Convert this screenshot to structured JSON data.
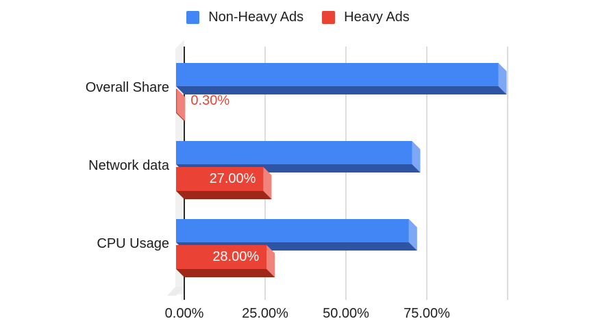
{
  "chart": {
    "background": "#ffffff",
    "legend": {
      "position": "top"
    },
    "chart_data": {
      "type": "bar",
      "orientation": "horizontal",
      "effect": "3d",
      "title": "",
      "categories": [
        "Overall Share",
        "Network data",
        "CPU Usage"
      ],
      "series": [
        {
          "name": "Non-Heavy Ads",
          "color": "#4285f4",
          "side_color": "#7ea7f5",
          "bottom_color": "#2d55a3",
          "values": [
            99.7,
            73,
            72
          ]
        },
        {
          "name": "Heavy Ads",
          "color": "#ea4335",
          "side_color": "#f0837c",
          "bottom_color": "#9e2818",
          "values": [
            0.3,
            27,
            28
          ],
          "data_labels": [
            "0.30%",
            "27.00%",
            "28.00%"
          ]
        }
      ],
      "x_axis": {
        "min": 0,
        "max": 100,
        "ticks": [
          {
            "value": 0,
            "label": "0.00%"
          },
          {
            "value": 25,
            "label": "25.00%"
          },
          {
            "value": 50,
            "label": "50.00%"
          },
          {
            "value": 75,
            "label": "75.00%"
          },
          {
            "value": 100,
            "label": ""
          }
        ]
      },
      "grid": true,
      "axis_color": "#2a2a2a",
      "gridline_color": "#dcdcdc",
      "wall_color": "#f1f1f1",
      "data_label_inside_color": "#ffffff"
    }
  }
}
